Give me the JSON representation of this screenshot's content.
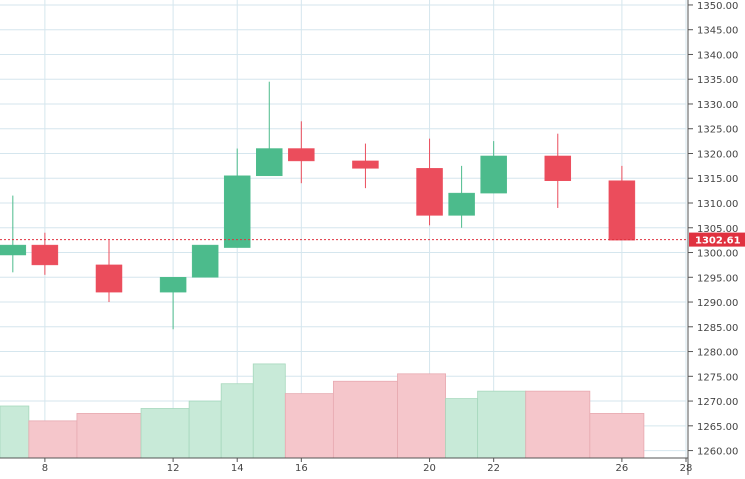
{
  "chart_data": {
    "type": "candlestick",
    "x_ticks": [
      "8",
      "12",
      "14",
      "16",
      "20",
      "22",
      "26",
      "28"
    ],
    "y_ticks": [
      "1260.00",
      "1265.00",
      "1270.00",
      "1275.00",
      "1280.00",
      "1285.00",
      "1290.00",
      "1295.00",
      "1300.00",
      "1305.00",
      "1310.00",
      "1315.00",
      "1320.00",
      "1325.00",
      "1330.00",
      "1335.00",
      "1340.00",
      "1345.00",
      "1350.00"
    ],
    "ylim": [
      1258.5,
      1351
    ],
    "xlim": [
      6.6,
      28
    ],
    "grid": true,
    "last_price": 1302.61,
    "last_price_label": "1302.61",
    "candles": [
      {
        "x": 7,
        "open": 1299.5,
        "high": 1311.5,
        "low": 1296,
        "close": 1301.5
      },
      {
        "x": 8,
        "open": 1301.5,
        "high": 1304,
        "low": 1295.5,
        "close": 1297.5
      },
      {
        "x": 10,
        "open": 1297.5,
        "high": 1302.5,
        "low": 1290,
        "close": 1292
      },
      {
        "x": 12,
        "open": 1292,
        "high": 1295,
        "low": 1284.5,
        "close": 1295
      },
      {
        "x": 13,
        "open": 1295,
        "high": 1301.5,
        "low": 1295,
        "close": 1301.5
      },
      {
        "x": 14,
        "open": 1301,
        "high": 1321,
        "low": 1301,
        "close": 1315.5
      },
      {
        "x": 15,
        "open": 1315.5,
        "high": 1334.5,
        "low": 1315.5,
        "close": 1321
      },
      {
        "x": 16,
        "open": 1321,
        "high": 1326.5,
        "low": 1314,
        "close": 1318.5
      },
      {
        "x": 18,
        "open": 1318.5,
        "high": 1322,
        "low": 1313,
        "close": 1317
      },
      {
        "x": 20,
        "open": 1317,
        "high": 1323,
        "low": 1305.5,
        "close": 1307.5
      },
      {
        "x": 21,
        "open": 1307.5,
        "high": 1317.5,
        "low": 1305,
        "close": 1312
      },
      {
        "x": 22,
        "open": 1312,
        "high": 1322.5,
        "low": 1312,
        "close": 1319.5
      },
      {
        "x": 24,
        "open": 1319.5,
        "high": 1324,
        "low": 1309,
        "close": 1314.5
      },
      {
        "x": 26,
        "open": 1314.5,
        "high": 1317.5,
        "low": 1302.5,
        "close": 1302.5
      }
    ],
    "volume_bars": [
      {
        "x": 7,
        "value": 1269
      },
      {
        "x": 8,
        "value": 1266
      },
      {
        "x": 10,
        "value": 1267.5
      },
      {
        "x": 12,
        "value": 1268.5
      },
      {
        "x": 13,
        "value": 1270
      },
      {
        "x": 14,
        "value": 1273.5
      },
      {
        "x": 15,
        "value": 1277.5
      },
      {
        "x": 16,
        "value": 1271.5
      },
      {
        "x": 18,
        "value": 1274
      },
      {
        "x": 20,
        "value": 1275.5
      },
      {
        "x": 21,
        "value": 1270.5
      },
      {
        "x": 22,
        "value": 1272
      },
      {
        "x": 24,
        "value": 1272
      },
      {
        "x": 26,
        "value": 1267.5
      }
    ],
    "colors": {
      "up": "#4cbb8c",
      "down": "#eb4d5c",
      "up_volume": "#c8ead8",
      "down_volume": "#f5c6cb",
      "grid": "#d5e6ee",
      "price_line": "#e0313f",
      "price_label_bg": "#e0313f"
    }
  }
}
